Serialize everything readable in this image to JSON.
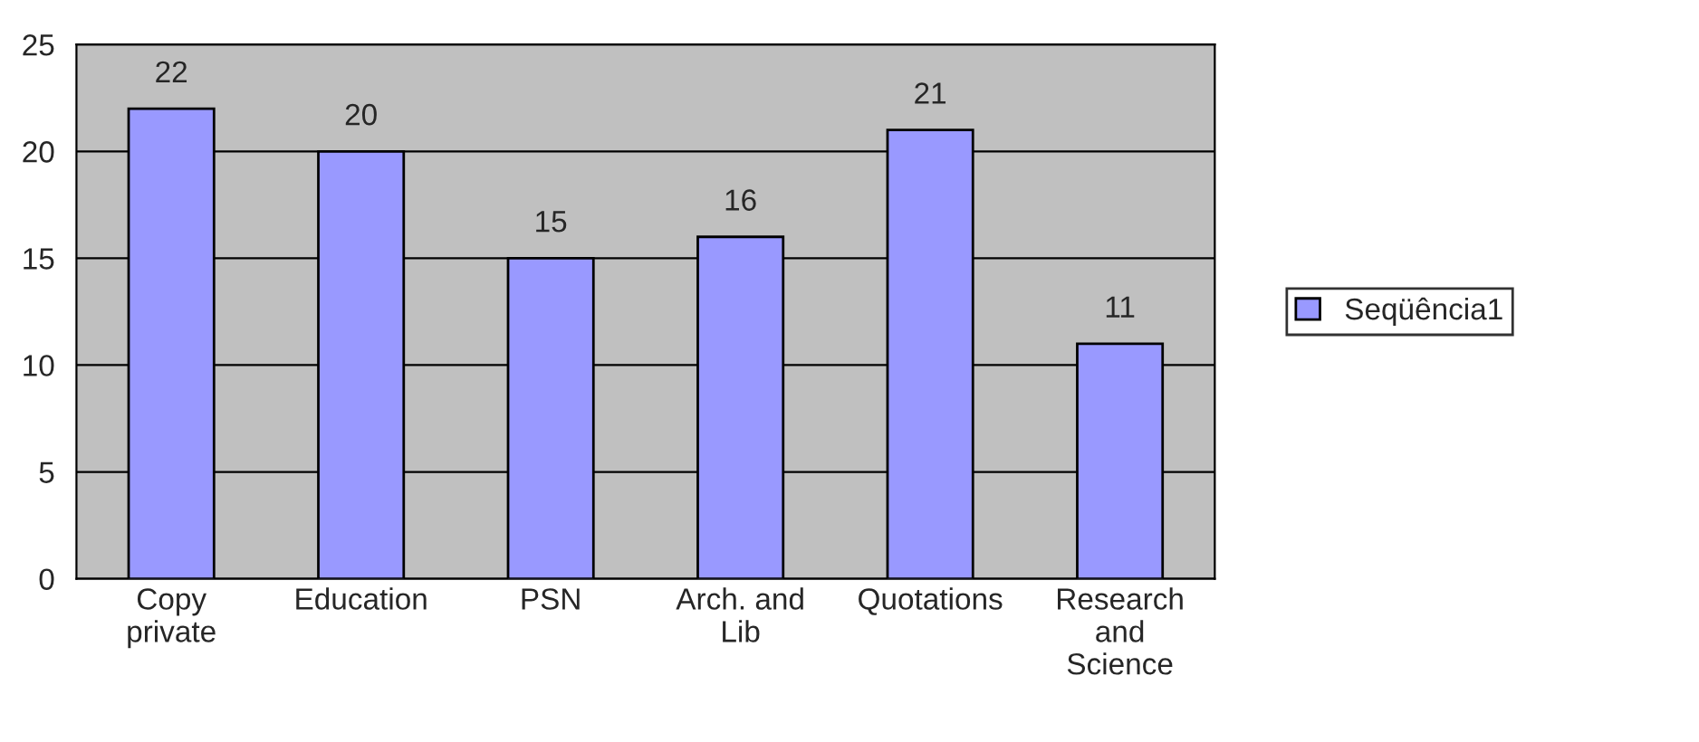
{
  "chart_data": {
    "type": "bar",
    "categories": [
      "Copy\nprivate",
      "Education",
      "PSN",
      "Arch. and\nLib",
      "Quotations",
      "Research\nand\nScience"
    ],
    "series": [
      {
        "name": "Seqüência1",
        "color": "#9999ff",
        "values": [
          22,
          20,
          15,
          16,
          21,
          11
        ]
      }
    ],
    "ylim": [
      0,
      25
    ],
    "yticks": [
      0,
      5,
      10,
      15,
      20,
      25
    ],
    "grid": "y",
    "legend": "right",
    "data_labels": true
  }
}
